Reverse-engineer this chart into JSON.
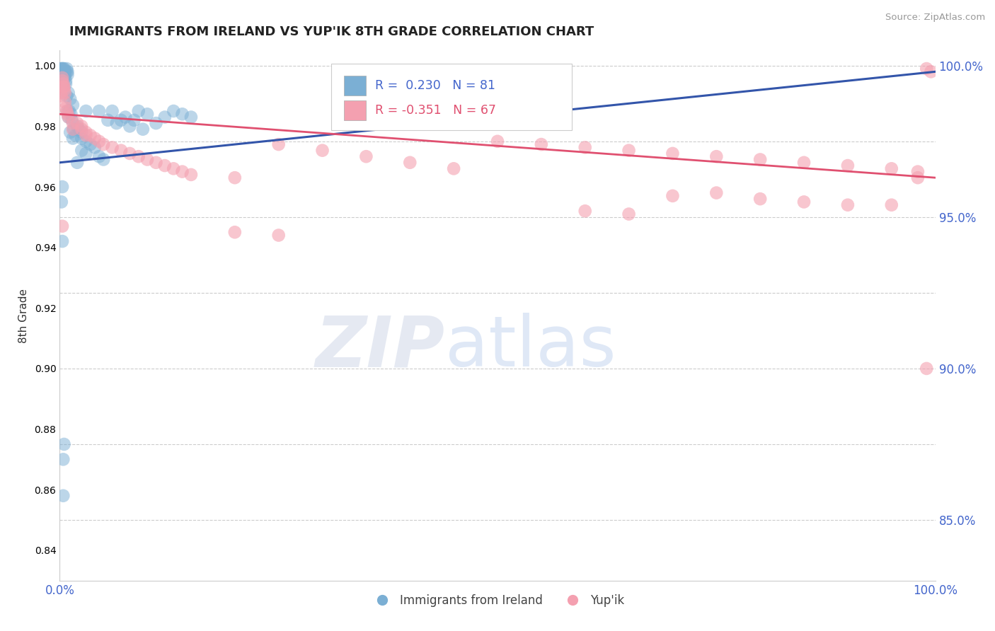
{
  "title": "IMMIGRANTS FROM IRELAND VS YUP'IK 8TH GRADE CORRELATION CHART",
  "source": "Source: ZipAtlas.com",
  "legend_label1": "Immigrants from Ireland",
  "legend_label2": "Yup'ik",
  "R_blue": 0.23,
  "N_blue": 81,
  "R_pink": -0.351,
  "N_pink": 67,
  "xmin": 0.0,
  "xmax": 1.0,
  "ymin": 0.83,
  "ymax": 1.005,
  "ytick_vals": [
    1.0,
    0.975,
    0.95,
    0.925,
    0.9,
    0.875,
    0.85
  ],
  "ytick_labels": [
    "100.0%",
    "",
    "95.0%",
    "",
    "90.0%",
    "",
    "85.0%"
  ],
  "blue_scatter_x": [
    0.001,
    0.001,
    0.001,
    0.001,
    0.002,
    0.002,
    0.002,
    0.002,
    0.002,
    0.002,
    0.002,
    0.003,
    0.003,
    0.003,
    0.003,
    0.003,
    0.003,
    0.004,
    0.004,
    0.004,
    0.004,
    0.005,
    0.005,
    0.005,
    0.006,
    0.006,
    0.006,
    0.007,
    0.007,
    0.008,
    0.008,
    0.008,
    0.009,
    0.009,
    0.009,
    0.01,
    0.01,
    0.011,
    0.012,
    0.012,
    0.013,
    0.014,
    0.015,
    0.015,
    0.016,
    0.018,
    0.02,
    0.02,
    0.022,
    0.025,
    0.025,
    0.025,
    0.03,
    0.03,
    0.03,
    0.035,
    0.04,
    0.045,
    0.045,
    0.05,
    0.055,
    0.06,
    0.065,
    0.07,
    0.075,
    0.08,
    0.085,
    0.09,
    0.095,
    0.1,
    0.11,
    0.12,
    0.13,
    0.14,
    0.15,
    0.002,
    0.003,
    0.004,
    0.003,
    0.004,
    0.005
  ],
  "blue_scatter_y": [
    0.999,
    0.998,
    0.997,
    0.996,
    0.999,
    0.998,
    0.997,
    0.996,
    0.995,
    0.994,
    0.993,
    0.999,
    0.998,
    0.997,
    0.996,
    0.995,
    0.994,
    0.999,
    0.998,
    0.997,
    0.996,
    0.999,
    0.998,
    0.997,
    0.998,
    0.997,
    0.996,
    0.995,
    0.994,
    0.999,
    0.998,
    0.99,
    0.998,
    0.997,
    0.985,
    0.991,
    0.983,
    0.985,
    0.989,
    0.978,
    0.984,
    0.982,
    0.987,
    0.976,
    0.979,
    0.977,
    0.98,
    0.968,
    0.979,
    0.978,
    0.976,
    0.972,
    0.975,
    0.971,
    0.985,
    0.974,
    0.973,
    0.985,
    0.97,
    0.969,
    0.982,
    0.985,
    0.981,
    0.982,
    0.983,
    0.98,
    0.982,
    0.985,
    0.979,
    0.984,
    0.981,
    0.983,
    0.985,
    0.984,
    0.983,
    0.955,
    0.942,
    0.87,
    0.96,
    0.858,
    0.875
  ],
  "pink_scatter_x": [
    0.001,
    0.002,
    0.003,
    0.003,
    0.004,
    0.004,
    0.005,
    0.005,
    0.006,
    0.006,
    0.007,
    0.008,
    0.009,
    0.01,
    0.015,
    0.015,
    0.02,
    0.025,
    0.025,
    0.03,
    0.03,
    0.035,
    0.04,
    0.045,
    0.05,
    0.06,
    0.07,
    0.08,
    0.09,
    0.1,
    0.11,
    0.12,
    0.13,
    0.14,
    0.15,
    0.2,
    0.25,
    0.3,
    0.35,
    0.4,
    0.45,
    0.5,
    0.55,
    0.6,
    0.65,
    0.7,
    0.75,
    0.8,
    0.85,
    0.9,
    0.95,
    0.98,
    0.99,
    0.995,
    0.003,
    0.2,
    0.25,
    0.6,
    0.65,
    0.7,
    0.75,
    0.8,
    0.85,
    0.9,
    0.95,
    0.98,
    0.99
  ],
  "pink_scatter_y": [
    0.991,
    0.99,
    0.996,
    0.995,
    0.994,
    0.993,
    0.993,
    0.992,
    0.991,
    0.988,
    0.986,
    0.985,
    0.984,
    0.983,
    0.981,
    0.979,
    0.981,
    0.98,
    0.979,
    0.978,
    0.977,
    0.977,
    0.976,
    0.975,
    0.974,
    0.973,
    0.972,
    0.971,
    0.97,
    0.969,
    0.968,
    0.967,
    0.966,
    0.965,
    0.964,
    0.963,
    0.974,
    0.972,
    0.97,
    0.968,
    0.966,
    0.975,
    0.974,
    0.973,
    0.972,
    0.971,
    0.97,
    0.969,
    0.968,
    0.967,
    0.966,
    0.965,
    0.999,
    0.998,
    0.947,
    0.945,
    0.944,
    0.952,
    0.951,
    0.957,
    0.958,
    0.956,
    0.955,
    0.954,
    0.954,
    0.963,
    0.9
  ],
  "blue_line_x": [
    0.0,
    1.0
  ],
  "blue_line_y": [
    0.968,
    0.998
  ],
  "pink_line_x": [
    0.0,
    1.0
  ],
  "pink_line_y": [
    0.984,
    0.963
  ],
  "blue_color": "#7bafd4",
  "pink_color": "#f4a0b0",
  "blue_line_color": "#3355aa",
  "pink_line_color": "#e05070",
  "grid_color": "#cccccc",
  "title_color": "#222222",
  "axis_label_color": "#4466cc",
  "background_color": "#ffffff",
  "watermark_zip": "ZIP",
  "watermark_atlas": "atlas",
  "watermark_zip_color": "#d0d8e8",
  "watermark_atlas_color": "#b8ccec"
}
